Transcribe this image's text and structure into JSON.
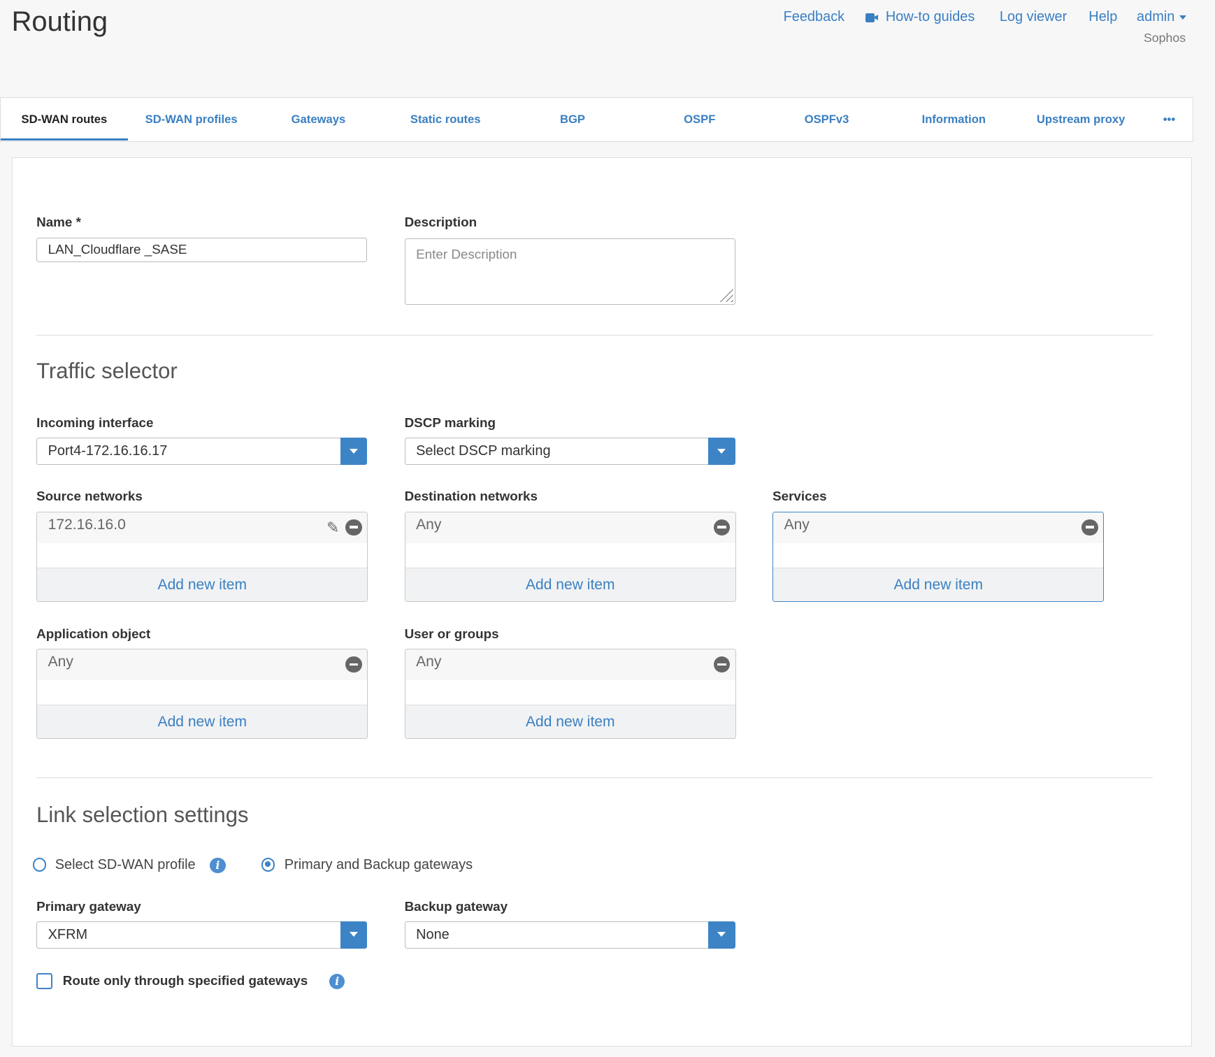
{
  "header": {
    "title": "Routing",
    "links": {
      "feedback": "Feedback",
      "howto": "How-to guides",
      "logviewer": "Log viewer",
      "help": "Help",
      "admin": "admin"
    },
    "org": "Sophos"
  },
  "tabs": [
    "SD-WAN routes",
    "SD-WAN profiles",
    "Gateways",
    "Static routes",
    "BGP",
    "OSPF",
    "OSPFv3",
    "Information",
    "Upstream proxy",
    "•••"
  ],
  "form": {
    "name": {
      "label": "Name *",
      "value": "LAN_Cloudflare _SASE"
    },
    "description": {
      "label": "Description",
      "placeholder": "Enter Description"
    },
    "traffic_title": "Traffic selector",
    "incoming": {
      "label": "Incoming interface",
      "value": "Port4-172.16.16.17"
    },
    "dscp": {
      "label": "DSCP marking",
      "value": "Select DSCP marking"
    },
    "source": {
      "label": "Source networks",
      "item": "172.16.16.0",
      "add": "Add new item"
    },
    "destination": {
      "label": "Destination networks",
      "item": "Any",
      "add": "Add new item"
    },
    "services": {
      "label": "Services",
      "item": "Any",
      "add": "Add new item"
    },
    "application": {
      "label": "Application object",
      "item": "Any",
      "add": "Add new item"
    },
    "users": {
      "label": "User or groups",
      "item": "Any",
      "add": "Add new item"
    },
    "link_title": "Link selection settings",
    "radio_sdwan": {
      "label": "Select SD-WAN profile",
      "selected": false
    },
    "radio_gw": {
      "label": "Primary and Backup gateways",
      "selected": true
    },
    "primary": {
      "label": "Primary gateway",
      "value": "XFRM"
    },
    "backup": {
      "label": "Backup gateway",
      "value": "None"
    },
    "route_only": {
      "label": "Route only through specified gateways",
      "checked": false
    }
  },
  "colors": {
    "accent": "#3d84c6",
    "link": "#3a7fc1"
  }
}
